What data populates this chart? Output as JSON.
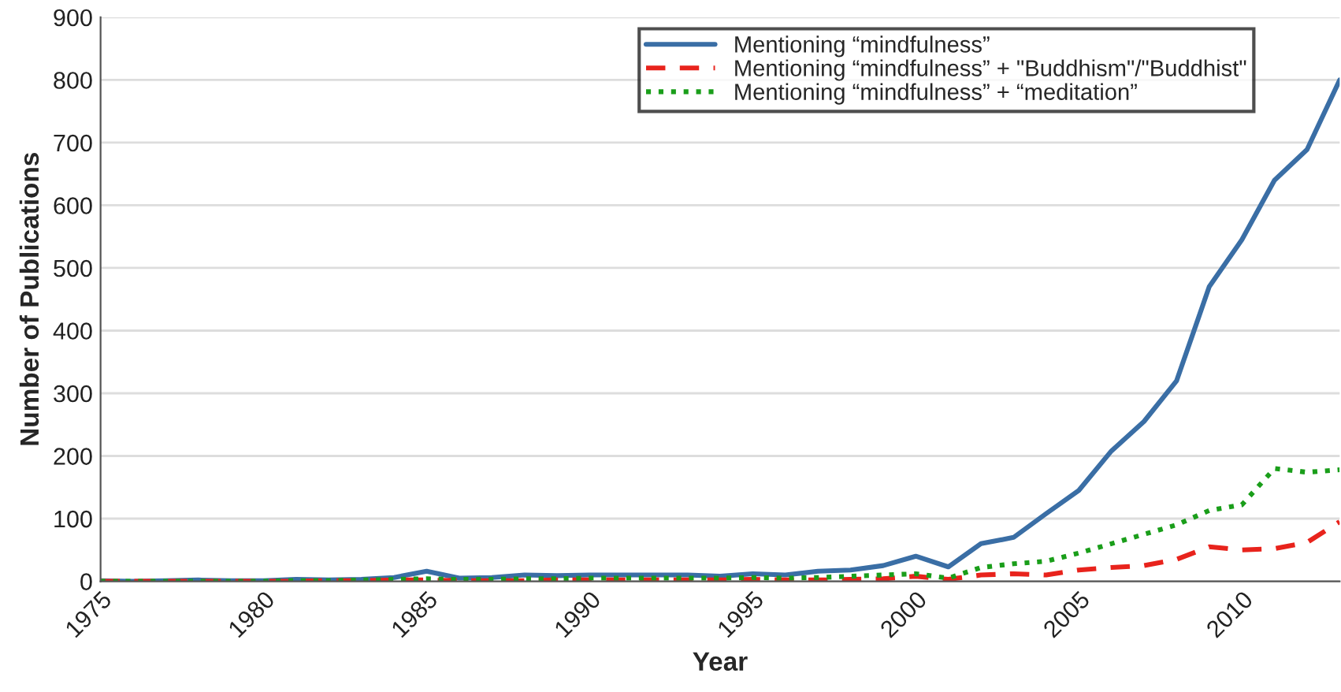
{
  "chart_data": {
    "type": "line",
    "xlabel": "Year",
    "ylabel": "Number of Publications",
    "x": [
      1975,
      1976,
      1977,
      1978,
      1979,
      1980,
      1981,
      1982,
      1983,
      1984,
      1985,
      1986,
      1987,
      1988,
      1989,
      1990,
      1991,
      1992,
      1993,
      1994,
      1995,
      1996,
      1997,
      1998,
      1999,
      2000,
      2001,
      2002,
      2003,
      2004,
      2005,
      2006,
      2007,
      2008,
      2009,
      2010,
      2011,
      2012,
      2013
    ],
    "series": [
      {
        "name": "Mentioning “mindfulness”",
        "color": "#3a6ea5",
        "line_style": "solid",
        "values": [
          1,
          0,
          1,
          2,
          1,
          1,
          3,
          2,
          3,
          6,
          16,
          5,
          6,
          10,
          9,
          10,
          10,
          10,
          10,
          8,
          12,
          10,
          16,
          18,
          25,
          40,
          23,
          60,
          70,
          108,
          145,
          208,
          255,
          320,
          470,
          545,
          640,
          689,
          800
        ]
      },
      {
        "name": "Mentioning “mindfulness” + \"Buddhism\"/\"Buddhist\"",
        "color": "#e8231c",
        "line_style": "dashed",
        "values": [
          0,
          0,
          0,
          0,
          0,
          0,
          0,
          1,
          1,
          2,
          2,
          1,
          1,
          1,
          2,
          2,
          2,
          2,
          2,
          2,
          3,
          2,
          2,
          3,
          4,
          8,
          3,
          10,
          12,
          10,
          18,
          22,
          25,
          35,
          55,
          50,
          52,
          62,
          95
        ]
      },
      {
        "name": "Mentioning “mindfulness” + “meditation”",
        "color": "#1a9e1a",
        "line_style": "dotted",
        "values": [
          0,
          0,
          0,
          0,
          0,
          0,
          1,
          1,
          2,
          3,
          4,
          3,
          3,
          4,
          4,
          5,
          5,
          5,
          5,
          5,
          6,
          5,
          6,
          8,
          10,
          12,
          5,
          22,
          28,
          32,
          45,
          60,
          75,
          90,
          113,
          122,
          180,
          174,
          178
        ]
      }
    ],
    "xlim": [
      1975,
      2013
    ],
    "xticks": [
      1975,
      1980,
      1985,
      1990,
      1995,
      2000,
      2005,
      2010
    ],
    "ylim": [
      0,
      900
    ],
    "yticks": [
      0,
      100,
      200,
      300,
      400,
      500,
      600,
      700,
      800,
      900
    ],
    "grid": "y",
    "legend": "top right",
    "marker": "none"
  }
}
